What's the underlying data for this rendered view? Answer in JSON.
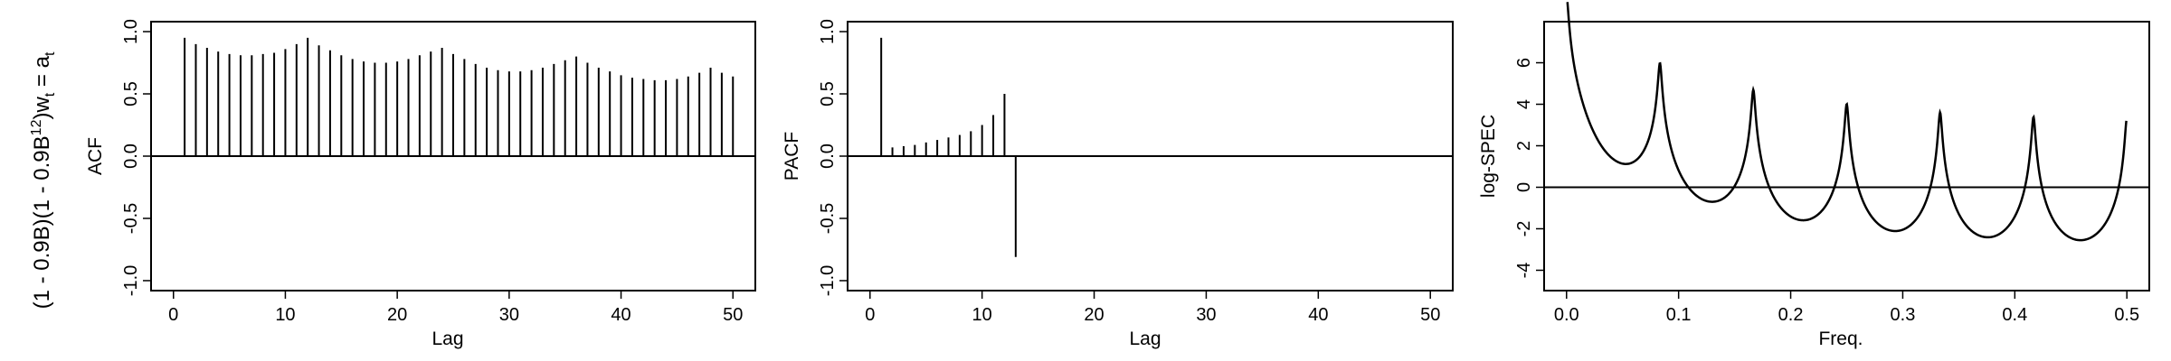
{
  "row_label": {
    "pre1": "(1 - 0.9B)(1 - 0.9B",
    "sup1": "12",
    "mid": ")w",
    "sub1": "t",
    "eq": " = a",
    "sub2": "t"
  },
  "chart_data": [
    {
      "type": "bar",
      "kind": "ACF stem plot",
      "xlabel": "Lag",
      "ylabel": "ACF",
      "xlim": [
        0,
        50
      ],
      "ylim": [
        -1,
        1
      ],
      "xticks": [
        "0",
        "10",
        "20",
        "30",
        "40",
        "50"
      ],
      "yticks": [
        "-1.0",
        "-0.5",
        "0.0",
        "0.5",
        "1.0"
      ],
      "zero_line": true,
      "x": [
        1,
        2,
        3,
        4,
        5,
        6,
        7,
        8,
        9,
        10,
        11,
        12,
        13,
        14,
        15,
        16,
        17,
        18,
        19,
        20,
        21,
        22,
        23,
        24,
        25,
        26,
        27,
        28,
        29,
        30,
        31,
        32,
        33,
        34,
        35,
        36,
        37,
        38,
        39,
        40,
        41,
        42,
        43,
        44,
        45,
        46,
        47,
        48,
        49,
        50
      ],
      "values": [
        0.95,
        0.9,
        0.87,
        0.84,
        0.82,
        0.81,
        0.81,
        0.82,
        0.83,
        0.86,
        0.9,
        0.95,
        0.89,
        0.85,
        0.81,
        0.78,
        0.76,
        0.75,
        0.75,
        0.76,
        0.78,
        0.81,
        0.84,
        0.87,
        0.82,
        0.78,
        0.74,
        0.71,
        0.69,
        0.68,
        0.68,
        0.69,
        0.71,
        0.74,
        0.77,
        0.8,
        0.75,
        0.71,
        0.68,
        0.65,
        0.63,
        0.62,
        0.61,
        0.61,
        0.62,
        0.64,
        0.67,
        0.71,
        0.67,
        0.64
      ]
    },
    {
      "type": "bar",
      "kind": "PACF stem plot",
      "xlabel": "Lag",
      "ylabel": "PACF",
      "xlim": [
        0,
        50
      ],
      "ylim": [
        -1,
        1
      ],
      "xticks": [
        "0",
        "10",
        "20",
        "30",
        "40",
        "50"
      ],
      "yticks": [
        "-1.0",
        "-0.5",
        "0.0",
        "0.5",
        "1.0"
      ],
      "zero_line": true,
      "x": [
        1,
        2,
        3,
        4,
        5,
        6,
        7,
        8,
        9,
        10,
        11,
        12,
        13
      ],
      "values": [
        0.95,
        0.07,
        0.08,
        0.09,
        0.11,
        0.13,
        0.15,
        0.17,
        0.2,
        0.25,
        0.33,
        0.5,
        -0.81
      ]
    },
    {
      "type": "line",
      "kind": "log spectrum",
      "xlabel": "Freq.",
      "ylabel": "log-SPEC",
      "xlim": [
        0,
        0.5
      ],
      "ylim": [
        -4.5,
        7.5
      ],
      "xticks": [
        "0.0",
        "0.1",
        "0.2",
        "0.3",
        "0.4",
        "0.5"
      ],
      "yticks": [
        "-4",
        "-2",
        "0",
        "2",
        "4",
        "6"
      ],
      "zero_line": true,
      "ar_coefficients": {
        "phi1": 0.9,
        "phi12": 0.9
      }
    }
  ]
}
